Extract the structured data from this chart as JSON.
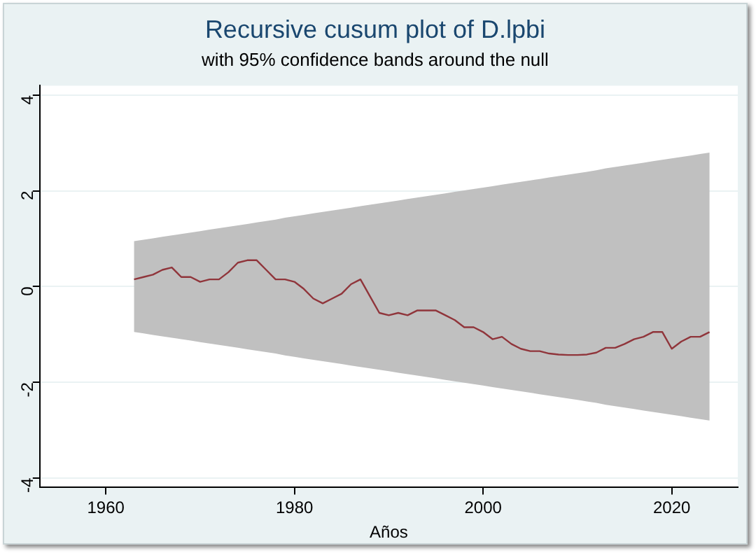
{
  "chart_data": {
    "type": "line",
    "title": "Recursive cusum plot of D.lpbi",
    "subtitle": "with 95% confidence bands around the null",
    "xlabel": "Años",
    "x": [
      1963,
      1964,
      1965,
      1966,
      1967,
      1968,
      1969,
      1970,
      1971,
      1972,
      1973,
      1974,
      1975,
      1976,
      1977,
      1978,
      1979,
      1980,
      1981,
      1982,
      1983,
      1984,
      1985,
      1986,
      1987,
      1988,
      1989,
      1990,
      1991,
      1992,
      1993,
      1994,
      1995,
      1996,
      1997,
      1998,
      1999,
      2000,
      2001,
      2002,
      2003,
      2004,
      2005,
      2006,
      2007,
      2008,
      2009,
      2010,
      2011,
      2012,
      2013,
      2014,
      2015,
      2016,
      2017,
      2018,
      2019,
      2020,
      2021,
      2022,
      2023,
      2024
    ],
    "series": [
      {
        "color": "#90353b",
        "values": [
          0.15,
          0.2,
          0.25,
          0.35,
          0.4,
          0.2,
          0.2,
          0.1,
          0.15,
          0.15,
          0.3,
          0.5,
          0.55,
          0.55,
          0.35,
          0.15,
          0.15,
          0.1,
          -0.05,
          -0.25,
          -0.35,
          -0.25,
          -0.15,
          0.05,
          0.15,
          -0.2,
          -0.55,
          -0.6,
          -0.55,
          -0.6,
          -0.5,
          -0.5,
          -0.5,
          -0.6,
          -0.7,
          -0.85,
          -0.85,
          -0.95,
          -1.1,
          -1.05,
          -1.2,
          -1.3,
          -1.35,
          -1.35,
          -1.4,
          -1.42,
          -1.43,
          -1.43,
          -1.42,
          -1.38,
          -1.28,
          -1.28,
          -1.2,
          -1.1,
          -1.05,
          -0.95,
          -0.95,
          -1.3,
          -1.15,
          -1.05,
          -1.05,
          -0.95
        ],
        "upper": [
          0.95,
          0.98,
          1.01,
          1.04,
          1.07,
          1.1,
          1.13,
          1.16,
          1.19,
          1.22,
          1.25,
          1.28,
          1.31,
          1.34,
          1.37,
          1.4,
          1.44,
          1.47,
          1.5,
          1.53,
          1.56,
          1.59,
          1.62,
          1.65,
          1.68,
          1.71,
          1.74,
          1.77,
          1.8,
          1.83,
          1.86,
          1.89,
          1.92,
          1.95,
          1.98,
          2.01,
          2.04,
          2.07,
          2.1,
          2.13,
          2.16,
          2.19,
          2.22,
          2.25,
          2.28,
          2.31,
          2.34,
          2.37,
          2.4,
          2.43,
          2.47,
          2.5,
          2.53,
          2.56,
          2.59,
          2.62,
          2.65,
          2.68,
          2.71,
          2.74,
          2.77,
          2.8
        ],
        "lower": [
          -0.95,
          -0.98,
          -1.01,
          -1.04,
          -1.07,
          -1.1,
          -1.13,
          -1.16,
          -1.19,
          -1.22,
          -1.25,
          -1.28,
          -1.31,
          -1.34,
          -1.37,
          -1.4,
          -1.44,
          -1.47,
          -1.5,
          -1.53,
          -1.56,
          -1.59,
          -1.62,
          -1.65,
          -1.68,
          -1.71,
          -1.74,
          -1.77,
          -1.8,
          -1.83,
          -1.86,
          -1.89,
          -1.92,
          -1.95,
          -1.98,
          -2.01,
          -2.04,
          -2.07,
          -2.1,
          -2.13,
          -2.16,
          -2.19,
          -2.22,
          -2.25,
          -2.28,
          -2.31,
          -2.34,
          -2.37,
          -2.4,
          -2.43,
          -2.47,
          -2.5,
          -2.53,
          -2.56,
          -2.59,
          -2.62,
          -2.65,
          -2.68,
          -2.71,
          -2.74,
          -2.77,
          -2.8
        ]
      }
    ],
    "xlim": [
      1953,
      2027
    ],
    "xticks": [
      1960,
      1980,
      2000,
      2020
    ],
    "ylim": [
      -4.2,
      4.2
    ],
    "yticks": [
      -4,
      -2,
      0,
      2,
      4
    ],
    "grid": "y",
    "legend": false,
    "marker": "none",
    "line_style": "solid"
  }
}
